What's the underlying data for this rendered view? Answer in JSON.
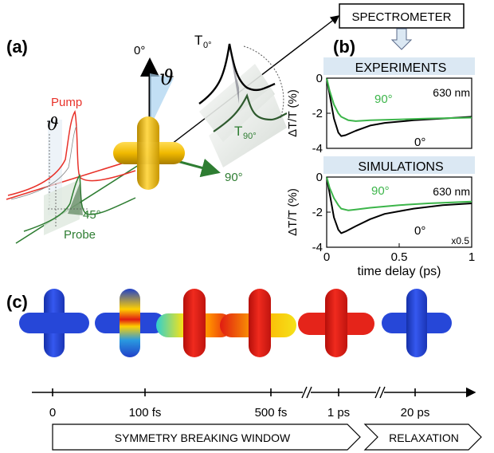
{
  "panels": {
    "a": "(a)",
    "b": "(b)",
    "c": "(c)"
  },
  "setup": {
    "spectrometer": "SPECTROMETER",
    "angle_0": "0°",
    "angle_90": "90°",
    "theta": "ϑ",
    "pump": "Pump",
    "probe": "Probe",
    "angle_45": "45°",
    "t0_base": "T",
    "t0_sub": "0°",
    "t90_base": "T",
    "t90_sub": "90°"
  },
  "colors": {
    "pump": "#e8322a",
    "probe": "#2e7d32",
    "gold": "#e8b400",
    "curve_0": "#000000",
    "curve_90": "#3cb54a",
    "header_bg": "#dbe8f3",
    "cold": "#1f3fd1",
    "hot": "#e01b12"
  },
  "chart_data": [
    {
      "type": "line",
      "title": "EXPERIMENTS",
      "ylabel": "ΔT/T (%)",
      "xlabel": "",
      "ylim": [
        -4,
        0
      ],
      "xlim": [
        0,
        1
      ],
      "yticks": [
        "0",
        "-2",
        "-4"
      ],
      "annotation": "630 nm",
      "series": [
        {
          "name": "0°",
          "x": [
            0,
            0.02,
            0.05,
            0.08,
            0.1,
            0.13,
            0.2,
            0.3,
            0.4,
            0.6,
            0.8,
            1.0
          ],
          "y": [
            0,
            -0.9,
            -2.3,
            -3.1,
            -3.3,
            -3.25,
            -3.0,
            -2.7,
            -2.55,
            -2.4,
            -2.3,
            -2.2
          ]
        },
        {
          "name": "90°",
          "x": [
            0,
            0.02,
            0.05,
            0.08,
            0.1,
            0.15,
            0.2,
            0.3,
            0.5,
            0.7,
            1.0
          ],
          "y": [
            0,
            -0.7,
            -1.5,
            -2.0,
            -2.2,
            -2.4,
            -2.45,
            -2.4,
            -2.35,
            -2.3,
            -2.25
          ]
        }
      ]
    },
    {
      "type": "line",
      "title": "SIMULATIONS",
      "ylabel": "ΔT/T (%)",
      "xlabel": "time delay (ps)",
      "ylim": [
        -4,
        0
      ],
      "xlim": [
        0,
        1
      ],
      "yticks": [
        "0",
        "-2",
        "-4"
      ],
      "xticks": [
        "0",
        "0.5",
        "1"
      ],
      "annotation": "630 nm",
      "note": "x0.5",
      "series": [
        {
          "name": "0°",
          "x": [
            0,
            0.02,
            0.05,
            0.08,
            0.1,
            0.13,
            0.2,
            0.3,
            0.4,
            0.6,
            0.8,
            1.0
          ],
          "y": [
            0,
            -0.9,
            -2.3,
            -3.0,
            -3.2,
            -3.1,
            -2.8,
            -2.4,
            -2.1,
            -1.8,
            -1.6,
            -1.5
          ]
        },
        {
          "name": "90°",
          "x": [
            0,
            0.02,
            0.05,
            0.08,
            0.1,
            0.15,
            0.2,
            0.3,
            0.5,
            0.7,
            1.0
          ],
          "y": [
            0,
            -0.6,
            -1.2,
            -1.6,
            -1.8,
            -1.9,
            -1.85,
            -1.75,
            -1.6,
            -1.5,
            -1.4
          ]
        }
      ]
    }
  ],
  "timeline": {
    "ticks": [
      "0",
      "100 fs",
      "500 fs",
      "1 ps",
      "20 ps"
    ],
    "windows": [
      "SYMMETRY BREAKING WINDOW",
      "RELAXATION"
    ]
  }
}
